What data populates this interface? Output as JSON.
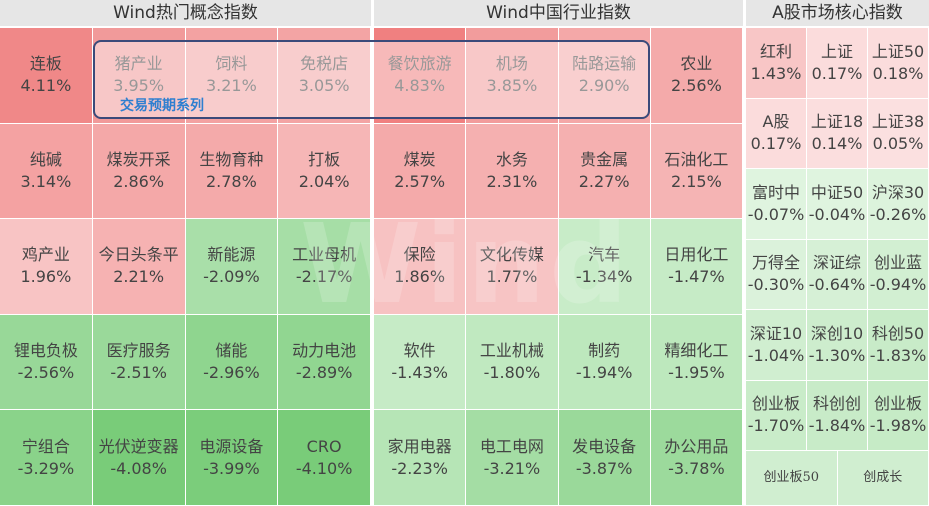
{
  "panels": [
    {
      "title": "Wind热门概念指数",
      "rows": [
        [
          {
            "name": "连板",
            "value": "4.11%",
            "color": "#f08888"
          },
          {
            "name": "猪产业",
            "value": "3.95%",
            "color": "#f19a9a"
          },
          {
            "name": "饲料",
            "value": "3.21%",
            "color": "#f3a2a2"
          },
          {
            "name": "免税店",
            "value": "3.05%",
            "color": "#f3a4a4"
          }
        ],
        [
          {
            "name": "纯碱",
            "value": "3.14%",
            "color": "#f4a2a2"
          },
          {
            "name": "煤炭开采",
            "value": "2.86%",
            "color": "#f4a8a8"
          },
          {
            "name": "生物育种",
            "value": "2.78%",
            "color": "#f4aaaa"
          },
          {
            "name": "打板",
            "value": "2.04%",
            "color": "#f6b6b6"
          }
        ],
        [
          {
            "name": "鸡产业",
            "value": "1.96%",
            "color": "#f8c4c4"
          },
          {
            "name": "今日头条平",
            "value": "2.21%",
            "color": "#f6b2b2"
          },
          {
            "name": "新能源",
            "value": "-2.09%",
            "color": "#a9dfa9"
          },
          {
            "name": "工业母机",
            "value": "-2.17%",
            "color": "#a6dea6"
          }
        ],
        [
          {
            "name": "锂电负极",
            "value": "-2.56%",
            "color": "#98d898"
          },
          {
            "name": "医疗服务",
            "value": "-2.51%",
            "color": "#9ad99a"
          },
          {
            "name": "储能",
            "value": "-2.96%",
            "color": "#8fd58f"
          },
          {
            "name": "动力电池",
            "value": "-2.89%",
            "color": "#91d691"
          }
        ],
        [
          {
            "name": "宁组合",
            "value": "-3.29%",
            "color": "#8ad38a"
          },
          {
            "name": "光伏逆变器",
            "value": "-4.08%",
            "color": "#79cc79"
          },
          {
            "name": "电源设备",
            "value": "-3.99%",
            "color": "#7bcd7b"
          },
          {
            "name": "CRO",
            "value": "-4.10%",
            "color": "#79cc79"
          }
        ]
      ]
    },
    {
      "title": "Wind中国行业指数",
      "rows": [
        [
          {
            "name": "餐饮旅游",
            "value": "4.83%",
            "color": "#f08080"
          },
          {
            "name": "机场",
            "value": "3.85%",
            "color": "#f29c9c"
          },
          {
            "name": "陆路运输",
            "value": "2.90%",
            "color": "#f4a8a8"
          },
          {
            "name": "农业",
            "value": "2.56%",
            "color": "#f4aaaa"
          }
        ],
        [
          {
            "name": "煤炭",
            "value": "2.57%",
            "color": "#f4aaaa"
          },
          {
            "name": "水务",
            "value": "2.31%",
            "color": "#f5b0b0"
          },
          {
            "name": "贵金属",
            "value": "2.27%",
            "color": "#f5b0b0"
          },
          {
            "name": "石油化工",
            "value": "2.15%",
            "color": "#f5b4b4"
          }
        ],
        [
          {
            "name": "保险",
            "value": "1.86%",
            "color": "#f7c2c2"
          },
          {
            "name": "文化传媒",
            "value": "1.77%",
            "color": "#f7c4c4"
          },
          {
            "name": "汽车",
            "value": "-1.34%",
            "color": "#c8ecc8"
          },
          {
            "name": "日用化工",
            "value": "-1.47%",
            "color": "#c6ebc6"
          }
        ],
        [
          {
            "name": "软件",
            "value": "-1.43%",
            "color": "#c6ebc6"
          },
          {
            "name": "工业机械",
            "value": "-1.80%",
            "color": "#c0e9c0"
          },
          {
            "name": "制药",
            "value": "-1.94%",
            "color": "#bde8bd"
          },
          {
            "name": "精细化工",
            "value": "-1.95%",
            "color": "#bde8bd"
          }
        ],
        [
          {
            "name": "家用电器",
            "value": "-2.23%",
            "color": "#b6e5b6"
          },
          {
            "name": "电工电网",
            "value": "-3.21%",
            "color": "#a4dda4"
          },
          {
            "name": "发电设备",
            "value": "-3.87%",
            "color": "#9ad99a"
          },
          {
            "name": "办公用品",
            "value": "-3.78%",
            "color": "#9cda9c"
          }
        ]
      ]
    },
    {
      "title": "A股市场核心指数",
      "rows": [
        [
          {
            "name": "红利",
            "value": "1.43%",
            "color": "#f8c6c6"
          },
          {
            "name": "上证",
            "value": "0.17%",
            "color": "#fbdcdc"
          },
          {
            "name": "上证50",
            "value": "0.18%",
            "color": "#fbdcdc"
          }
        ],
        [
          {
            "name": "A股",
            "value": "0.17%",
            "color": "#fbdcdc"
          },
          {
            "name": "上证18",
            "value": "0.14%",
            "color": "#fbdede"
          },
          {
            "name": "上证38",
            "value": "0.05%",
            "color": "#fbe0e0"
          }
        ],
        [
          {
            "name": "富时中",
            "value": "-0.07%",
            "color": "#dff4df"
          },
          {
            "name": "中证50",
            "value": "-0.04%",
            "color": "#dff4df"
          },
          {
            "name": "沪深30",
            "value": "-0.26%",
            "color": "#dcf3dc"
          }
        ],
        [
          {
            "name": "万得全",
            "value": "-0.30%",
            "color": "#dbf2db"
          },
          {
            "name": "深证综",
            "value": "-0.64%",
            "color": "#d6f0d6"
          },
          {
            "name": "创业蓝",
            "value": "-0.94%",
            "color": "#d2efd2"
          }
        ],
        [
          {
            "name": "深证10",
            "value": "-1.04%",
            "color": "#d0eed0"
          },
          {
            "name": "深创10",
            "value": "-1.30%",
            "color": "#cdedcd"
          },
          {
            "name": "科创50",
            "value": "-1.83%",
            "color": "#c8ebc8"
          }
        ],
        [
          {
            "name": "创业板",
            "value": "-1.70%",
            "color": "#c9ecc9"
          },
          {
            "name": "科创创",
            "value": "-1.84%",
            "color": "#c8ebc8"
          },
          {
            "name": "创业板",
            "value": "-1.98%",
            "color": "#c6ebc6"
          }
        ],
        [
          {
            "name": "创业板50",
            "color": "#d0eed0"
          },
          {
            "name": "创成长",
            "color": "#d0eed0"
          }
        ]
      ]
    }
  ],
  "highlight_label": "交易预期系列",
  "watermark": "Wind"
}
